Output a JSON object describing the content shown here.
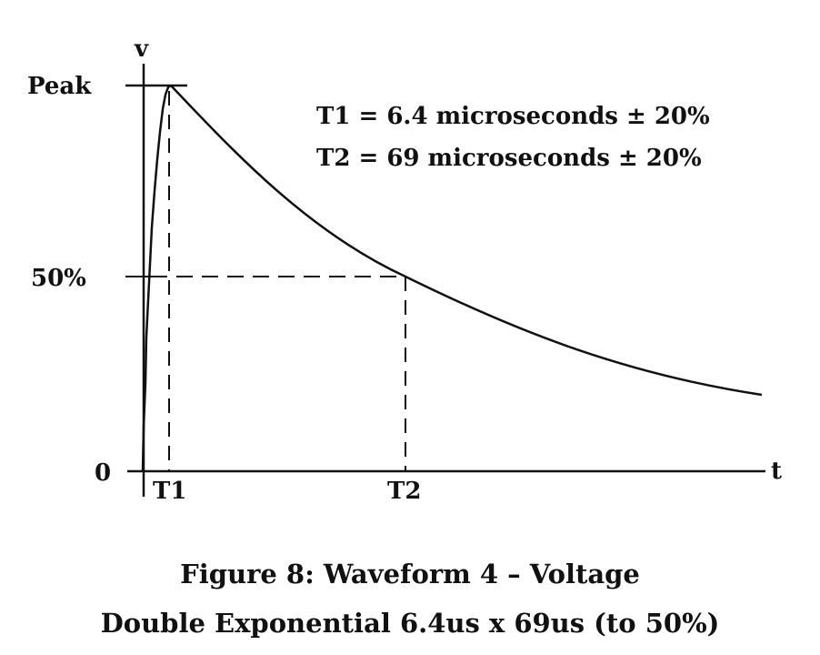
{
  "diagram": {
    "labels": {
      "y_axis": "v",
      "x_axis": "t",
      "peak": "Peak",
      "half": "50%",
      "zero": "0",
      "t1": "T1",
      "t2": "T2"
    },
    "annotations": {
      "t1_spec": "T1 = 6.4 microseconds ± 20%",
      "t2_spec": "T2 = 69 microseconds ± 20%"
    }
  },
  "caption": {
    "line1": "Figure 8: Waveform 4 – Voltage",
    "line2": "Double Exponential 6.4us x 69us (to 50%)"
  }
}
